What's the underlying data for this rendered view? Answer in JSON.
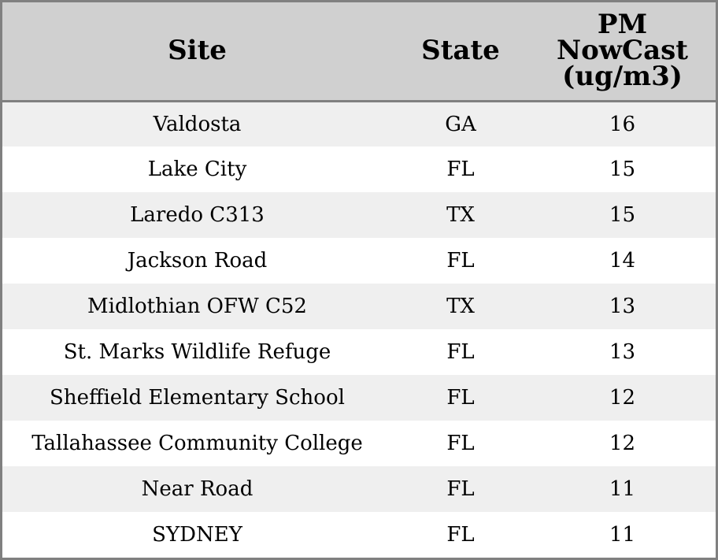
{
  "chart_data": {
    "type": "table",
    "columns": [
      "Site",
      "State",
      "PM NowCast (ug/m3)"
    ],
    "header_lines": {
      "site": [
        "Site"
      ],
      "state": [
        "State"
      ],
      "pm": [
        "PM",
        "NowCast",
        "(ug/m3)"
      ]
    },
    "rows": [
      {
        "site": "Valdosta",
        "state": "GA",
        "pm": 16
      },
      {
        "site": "Lake City",
        "state": "FL",
        "pm": 15
      },
      {
        "site": "Laredo C313",
        "state": "TX",
        "pm": 15
      },
      {
        "site": "Jackson Road",
        "state": "FL",
        "pm": 14
      },
      {
        "site": "Midlothian OFW C52",
        "state": "TX",
        "pm": 13
      },
      {
        "site": "St. Marks Wildlife Refuge",
        "state": "FL",
        "pm": 13
      },
      {
        "site": "Sheffield Elementary School",
        "state": "FL",
        "pm": 12
      },
      {
        "site": "Tallahassee Community College",
        "state": "FL",
        "pm": 12
      },
      {
        "site": "Near Road",
        "state": "FL",
        "pm": 11
      },
      {
        "site": "SYDNEY",
        "state": "FL",
        "pm": 11
      }
    ],
    "colors": {
      "header_bg": "#d0d0d0",
      "row_odd_bg": "#efefef",
      "row_even_bg": "#ffffff",
      "border": "#808080"
    }
  }
}
